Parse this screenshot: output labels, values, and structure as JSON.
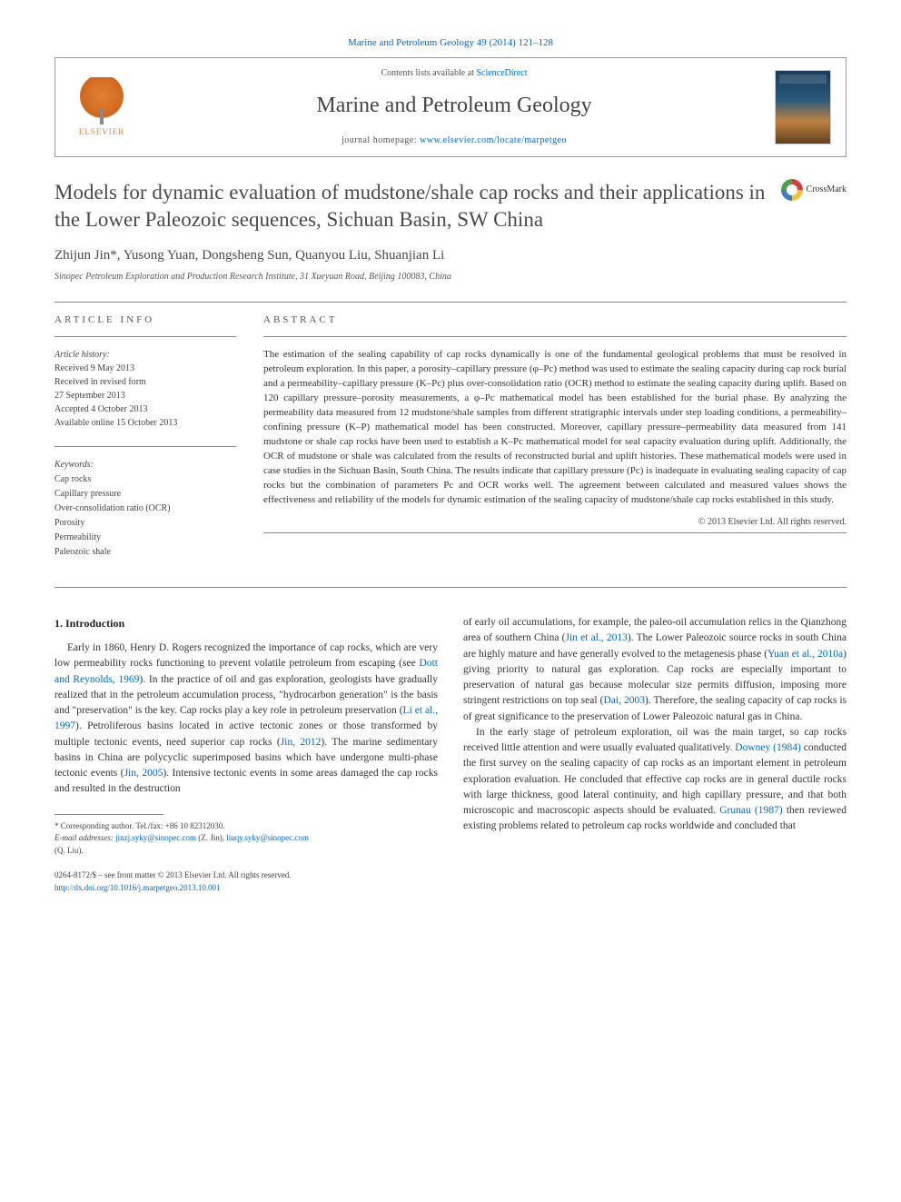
{
  "header": {
    "citation": "Marine and Petroleum Geology 49 (2014) 121–128",
    "contents_prefix": "Contents lists available at ",
    "contents_link": "ScienceDirect",
    "journal_name": "Marine and Petroleum Geology",
    "homepage_prefix": "journal homepage: ",
    "homepage_url": "www.elsevier.com/locate/marpetgeo",
    "publisher": "ELSEVIER"
  },
  "crossmark_label": "CrossMark",
  "article": {
    "title": "Models for dynamic evaluation of mudstone/shale cap rocks and their applications in the Lower Paleozoic sequences, Sichuan Basin, SW China",
    "authors": "Zhijun Jin*, Yusong Yuan, Dongsheng Sun, Quanyou Liu, Shuanjian Li",
    "affiliation": "Sinopec Petroleum Exploration and Production Research Institute, 31 Xueyuan Road, Beijing 100083, China"
  },
  "info": {
    "heading": "ARTICLE INFO",
    "history_label": "Article history:",
    "history": [
      "Received 9 May 2013",
      "Received in revised form",
      "27 September 2013",
      "Accepted 4 October 2013",
      "Available online 15 October 2013"
    ],
    "keywords_label": "Keywords:",
    "keywords": [
      "Cap rocks",
      "Capillary pressure",
      "Over-consolidation ratio (OCR)",
      "Porosity",
      "Permeability",
      "Paleozoic shale"
    ]
  },
  "abstract": {
    "heading": "ABSTRACT",
    "text": "The estimation of the sealing capability of cap rocks dynamically is one of the fundamental geological problems that must be resolved in petroleum exploration. In this paper, a porosity–capillary pressure (φ–Pc) method was used to estimate the sealing capacity during cap rock burial and a permeability–capillary pressure (K–Pc) plus over-consolidation ratio (OCR) method to estimate the sealing capacity during uplift. Based on 120 capillary pressure–porosity measurements, a φ–Pc mathematical model has been established for the burial phase. By analyzing the permeability data measured from 12 mudstone/shale samples from different stratigraphic intervals under step loading conditions, a permeability–confining pressure (K–P) mathematical model has been constructed. Moreover, capillary pressure–permeability data measured from 141 mudstone or shale cap rocks have been used to establish a K–Pc mathematical model for seal capacity evaluation during uplift. Additionally, the OCR of mudstone or shale was calculated from the results of reconstructed burial and uplift histories. These mathematical models were used in case studies in the Sichuan Basin, South China. The results indicate that capillary pressure (Pc) is inadequate in evaluating sealing capacity of cap rocks but the combination of parameters Pc and OCR works well. The agreement between calculated and measured values shows the effectiveness and reliability of the models for dynamic estimation of the sealing capacity of mudstone/shale cap rocks established in this study.",
    "copyright": "© 2013 Elsevier Ltd. All rights reserved."
  },
  "body": {
    "section_heading": "1. Introduction",
    "col1_p1a": "Early in 1860, Henry D. Rogers recognized the importance of cap rocks, which are very low permeability rocks functioning to prevent volatile petroleum from escaping (see ",
    "col1_ref1": "Dott and Reynolds, 1969",
    "col1_p1b": "). In the practice of oil and gas exploration, geologists have gradually realized that in the petroleum accumulation process, \"hydrocarbon generation\" is the basis and \"preservation\" is the key. Cap rocks play a key role in petroleum preservation (",
    "col1_ref2": "Li et al., 1997",
    "col1_p1c": "). Petroliferous basins located in active tectonic zones or those transformed by multiple tectonic events, need superior cap rocks (",
    "col1_ref3": "Jin, 2012",
    "col1_p1d": "). The marine sedimentary basins in China are polycyclic superimposed basins which have undergone multi-phase tectonic events (",
    "col1_ref4": "Jin, 2005",
    "col1_p1e": "). Intensive tectonic events in some areas damaged the cap rocks and resulted in the destruction",
    "col2_p1a": "of early oil accumulations, for example, the paleo-oil accumulation relics in the Qianzhong area of southern China (",
    "col2_ref1": "Jin et al., 2013",
    "col2_p1b": "). The Lower Paleozoic source rocks in south China are highly mature and have generally evolved to the metagenesis phase (",
    "col2_ref2": "Yuan et al., 2010a",
    "col2_p1c": ") giving priority to natural gas exploration. Cap rocks are especially important to preservation of natural gas because molecular size permits diffusion, imposing more stringent restrictions on top seal (",
    "col2_ref3": "Dai, 2003",
    "col2_p1d": "). Therefore, the sealing capacity of cap rocks is of great significance to the preservation of Lower Paleozoic natural gas in China.",
    "col2_p2a": "In the early stage of petroleum exploration, oil was the main target, so cap rocks received little attention and were usually evaluated qualitatively. ",
    "col2_ref4": "Downey (1984)",
    "col2_p2b": " conducted the first survey on the sealing capacity of cap rocks as an important element in petroleum exploration evaluation. He concluded that effective cap rocks are in general ductile rocks with large thickness, good lateral continuity, and high capillary pressure, and that both microscopic and macroscopic aspects should be evaluated. ",
    "col2_ref5": "Grunau (1987)",
    "col2_p2c": " then reviewed existing problems related to petroleum cap rocks worldwide and concluded that"
  },
  "footnotes": {
    "corr": "* Corresponding author. Tel./fax: +86 10 82312030.",
    "email_label": "E-mail addresses: ",
    "email1": "jinzj.syky@sinopec.com",
    "email1_who": " (Z. Jin), ",
    "email2": "liuqy.syky@sinopec.com",
    "email2_who": " (Q. Liu)."
  },
  "bottom": {
    "issn_line": "0264-8172/$ – see front matter © 2013 Elsevier Ltd. All rights reserved.",
    "doi": "http://dx.doi.org/10.1016/j.marpetgeo.2013.10.001"
  },
  "colors": {
    "link": "#0066cc",
    "text": "#333333",
    "heading": "#4a4a4a"
  }
}
